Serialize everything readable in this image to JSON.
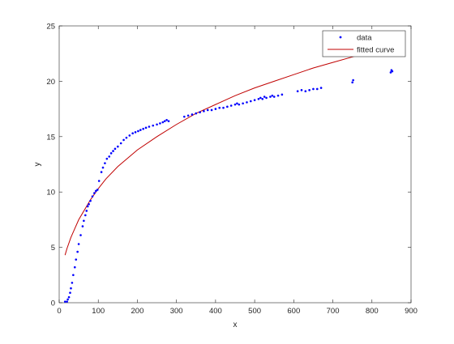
{
  "colors": {
    "background": "#ffffff",
    "axes": "#262626",
    "data_marker": "#0000ff",
    "fitted_curve": "#c00000"
  },
  "chart_data": {
    "type": "scatter",
    "title": "",
    "xlabel": "x",
    "ylabel": "y",
    "xlim": [
      0,
      900
    ],
    "ylim": [
      0,
      25
    ],
    "xticks": [
      0,
      100,
      200,
      300,
      400,
      500,
      600,
      700,
      800,
      900
    ],
    "yticks": [
      0,
      5,
      10,
      15,
      20,
      25
    ],
    "xtick_labels": [
      "0",
      "100",
      "200",
      "300",
      "400",
      "500",
      "600",
      "700",
      "800",
      "900"
    ],
    "ytick_labels": [
      "0",
      "5",
      "10",
      "15",
      "20",
      "25"
    ],
    "grid": false,
    "box": true,
    "legend": {
      "position": "top-right",
      "entries": [
        "data",
        "fitted curve"
      ]
    },
    "series": [
      {
        "name": "data",
        "style": "points",
        "color": "#0000ff",
        "x": [
          15,
          20,
          22,
          25,
          28,
          30,
          33,
          36,
          40,
          43,
          47,
          50,
          55,
          60,
          63,
          67,
          70,
          73,
          76,
          80,
          85,
          90,
          94,
          98,
          102,
          108,
          112,
          117,
          122,
          128,
          133,
          138,
          143,
          150,
          158,
          165,
          172,
          180,
          188,
          195,
          202,
          208,
          215,
          222,
          230,
          240,
          250,
          258,
          265,
          270,
          275,
          280,
          320,
          330,
          340,
          350,
          360,
          370,
          380,
          390,
          400,
          410,
          420,
          430,
          440,
          450,
          455,
          460,
          470,
          480,
          490,
          500,
          510,
          515,
          520,
          525,
          530,
          540,
          545,
          550,
          560,
          570,
          610,
          620,
          630,
          640,
          650,
          660,
          670,
          750,
          752,
          848,
          850,
          852
        ],
        "y": [
          0.1,
          0.1,
          0.3,
          0.5,
          0.9,
          1.3,
          1.8,
          2.5,
          3.2,
          3.9,
          4.6,
          5.3,
          6.1,
          6.9,
          7.4,
          7.9,
          8.3,
          8.7,
          8.9,
          9.2,
          9.6,
          9.9,
          10.1,
          10.2,
          11.0,
          11.8,
          12.2,
          12.6,
          13.0,
          13.2,
          13.5,
          13.7,
          13.9,
          14.1,
          14.4,
          14.7,
          14.9,
          15.1,
          15.3,
          15.4,
          15.5,
          15.6,
          15.7,
          15.8,
          15.9,
          16.0,
          16.1,
          16.2,
          16.3,
          16.4,
          16.5,
          16.4,
          16.8,
          16.9,
          17.0,
          17.1,
          17.2,
          17.3,
          17.4,
          17.4,
          17.5,
          17.6,
          17.6,
          17.7,
          17.8,
          17.9,
          18.0,
          17.9,
          18.0,
          18.1,
          18.2,
          18.3,
          18.4,
          18.5,
          18.4,
          18.6,
          18.5,
          18.6,
          18.7,
          18.6,
          18.7,
          18.8,
          19.1,
          19.2,
          19.1,
          19.2,
          19.3,
          19.3,
          19.4,
          19.9,
          20.1,
          20.8,
          21.0,
          20.9
        ]
      },
      {
        "name": "fitted curve",
        "style": "line",
        "color": "#c00000",
        "x": [
          15,
          20,
          30,
          40,
          50,
          60,
          70,
          80,
          90,
          100,
          120,
          150,
          200,
          250,
          300,
          350,
          400,
          450,
          500,
          550,
          600,
          650,
          700,
          750,
          800,
          850,
          880
        ],
        "y": [
          4.3,
          4.9,
          5.9,
          6.7,
          7.5,
          8.1,
          8.7,
          9.3,
          9.8,
          10.3,
          11.2,
          12.3,
          13.8,
          15.0,
          16.1,
          17.1,
          17.9,
          18.7,
          19.4,
          20.0,
          20.6,
          21.2,
          21.7,
          22.2,
          22.7,
          23.2,
          23.5
        ]
      }
    ]
  }
}
